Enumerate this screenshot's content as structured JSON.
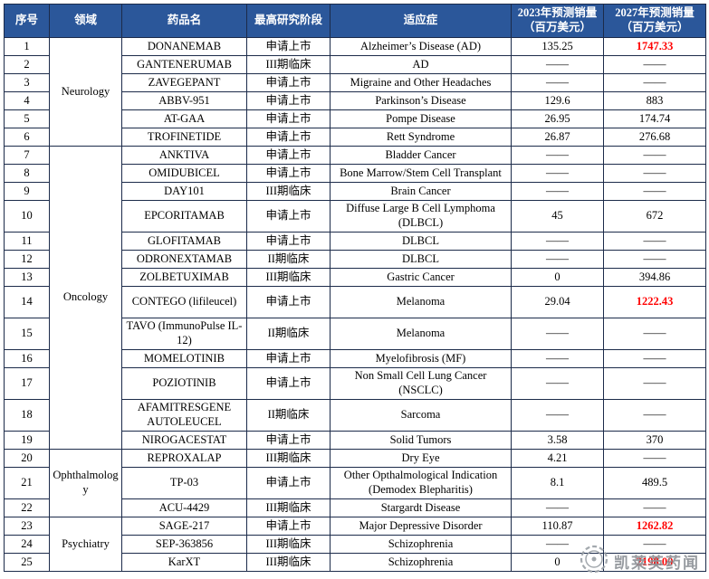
{
  "colors": {
    "header_bg": "#2b579a",
    "header_text": "#ffffff",
    "border": "#1c2b4a",
    "highlight_red": "#ff0000",
    "watermark_gray": "#8c9196"
  },
  "watermark": {
    "text": "凯莱英药闻"
  },
  "table": {
    "columns": [
      {
        "label": "序号",
        "sub": ""
      },
      {
        "label": "领域",
        "sub": ""
      },
      {
        "label": "药品名",
        "sub": ""
      },
      {
        "label": "最高研究阶段",
        "sub": ""
      },
      {
        "label": "适应症",
        "sub": ""
      },
      {
        "label": "2023年预测销量",
        "sub": "（百万美元）"
      },
      {
        "label": "2027年预测销量",
        "sub": "（百万美元）"
      }
    ],
    "groups": [
      {
        "label": "Neurology",
        "start": 0,
        "span": 6
      },
      {
        "label": "Oncology",
        "start": 6,
        "span": 13
      },
      {
        "label": "Ophthalmology",
        "start": 19,
        "span": 3
      },
      {
        "label": "Psychiatry",
        "start": 22,
        "span": 3
      }
    ],
    "rows": [
      {
        "no": "1",
        "drug": "DONANEMAB",
        "phase": "申请上市",
        "indication": "Alzheimer’s Disease (AD)",
        "y2023": "135.25",
        "y2027": "1747.33",
        "red": true
      },
      {
        "no": "2",
        "drug": "GANTENERUMAB",
        "phase": "III期临床",
        "indication": "AD",
        "y2023": "——",
        "y2027": "——"
      },
      {
        "no": "3",
        "drug": "ZAVEGEPANT",
        "phase": "申请上市",
        "indication": "Migraine and Other Headaches",
        "y2023": "——",
        "y2027": "——"
      },
      {
        "no": "4",
        "drug": "ABBV-951",
        "phase": "申请上市",
        "indication": "Parkinson’s Disease",
        "y2023": "129.6",
        "y2027": "883"
      },
      {
        "no": "5",
        "drug": "AT-GAA",
        "phase": "申请上市",
        "indication": "Pompe Disease",
        "y2023": "26.95",
        "y2027": "174.74"
      },
      {
        "no": "6",
        "drug": "TROFINETIDE",
        "phase": "申请上市",
        "indication": "Rett Syndrome",
        "y2023": "26.87",
        "y2027": "276.68"
      },
      {
        "no": "7",
        "drug": "ANKTIVA",
        "phase": "申请上市",
        "indication": "Bladder Cancer",
        "y2023": "——",
        "y2027": "——"
      },
      {
        "no": "8",
        "drug": "OMIDUBICEL",
        "phase": "申请上市",
        "indication": "Bone Marrow/Stem Cell Transplant",
        "y2023": "——",
        "y2027": "——"
      },
      {
        "no": "9",
        "drug": "DAY101",
        "phase": "III期临床",
        "indication": "Brain Cancer",
        "y2023": "——",
        "y2027": "——"
      },
      {
        "no": "10",
        "drug": "EPCORITAMAB",
        "phase": "申请上市",
        "indication": "Diffuse Large B Cell Lymphoma (DLBCL)",
        "y2023": "45",
        "y2027": "672",
        "tall": true
      },
      {
        "no": "11",
        "drug": "GLOFITAMAB",
        "phase": "申请上市",
        "indication": "DLBCL",
        "y2023": "——",
        "y2027": "——"
      },
      {
        "no": "12",
        "drug": "ODRONEXTAMAB",
        "phase": "II期临床",
        "indication": "DLBCL",
        "y2023": "——",
        "y2027": "——"
      },
      {
        "no": "13",
        "drug": "ZOLBETUXIMAB",
        "phase": "III期临床",
        "indication": "Gastric Cancer",
        "y2023": "0",
        "y2027": "394.86"
      },
      {
        "no": "14",
        "drug": "CONTEGO (lifileucel)",
        "phase": "申请上市",
        "indication": "Melanoma",
        "y2023": "29.04",
        "y2027": "1222.43",
        "red": true,
        "tall": true
      },
      {
        "no": "15",
        "drug": "TAVO (ImmunoPulse IL-12)",
        "phase": "II期临床",
        "indication": "Melanoma",
        "y2023": "——",
        "y2027": "——",
        "tall": true
      },
      {
        "no": "16",
        "drug": "MOMELOTINIB",
        "phase": "申请上市",
        "indication": "Myelofibrosis (MF)",
        "y2023": "——",
        "y2027": "——"
      },
      {
        "no": "17",
        "drug": "POZIOTINIB",
        "phase": "申请上市",
        "indication": "Non Small Cell Lung Cancer (NSCLC)",
        "y2023": "——",
        "y2027": "——",
        "tall": true
      },
      {
        "no": "18",
        "drug": "AFAMITRESGENE AUTOLEUCEL",
        "phase": "II期临床",
        "indication": "Sarcoma",
        "y2023": "——",
        "y2027": "——",
        "tall": true
      },
      {
        "no": "19",
        "drug": "NIROGACESTAT",
        "phase": "申请上市",
        "indication": "Solid Tumors",
        "y2023": "3.58",
        "y2027": "370"
      },
      {
        "no": "20",
        "drug": "REPROXALAP",
        "phase": "III期临床",
        "indication": "Dry Eye",
        "y2023": "4.21",
        "y2027": "——"
      },
      {
        "no": "21",
        "drug": "TP-03",
        "phase": "申请上市",
        "indication": "Other Opthalmological Indication (Demodex Blepharitis)",
        "y2023": "8.1",
        "y2027": "489.5",
        "tall": true
      },
      {
        "no": "22",
        "drug": "ACU-4429",
        "phase": "III期临床",
        "indication": "Stargardt Disease",
        "y2023": "——",
        "y2027": "——"
      },
      {
        "no": "23",
        "drug": "SAGE-217",
        "phase": "申请上市",
        "indication": "Major Depressive Disorder",
        "y2023": "110.87",
        "y2027": "1262.82",
        "red": true
      },
      {
        "no": "24",
        "drug": "SEP-363856",
        "phase": "III期临床",
        "indication": "Schizophrenia",
        "y2023": "——",
        "y2027": "——"
      },
      {
        "no": "25",
        "drug": "KarXT",
        "phase": "III期临床",
        "indication": "Schizophrenia",
        "y2023": "0",
        "y2027": "2198.09",
        "red": true
      }
    ]
  }
}
